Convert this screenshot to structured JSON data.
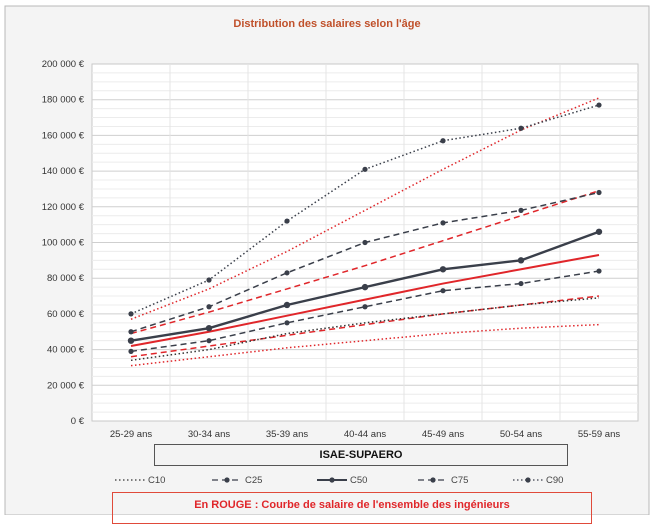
{
  "chart_data": {
    "type": "line",
    "title": "Distribution des salaires selon l'âge",
    "xlabel": "ISAE-SUPAERO",
    "ylabel": "",
    "categories": [
      "25-29 ans",
      "30-34 ans",
      "35-39 ans",
      "40-44 ans",
      "45-49 ans",
      "50-54 ans",
      "55-59 ans"
    ],
    "ylim": [
      0,
      200000
    ],
    "yticks": [
      "0 €",
      "20 000 €",
      "40 000 €",
      "60 000 €",
      "80 000 €",
      "100 000 €",
      "120 000 €",
      "140 000 €",
      "160 000 €",
      "180 000 €",
      "200 000 €"
    ],
    "grid": true,
    "legend_position": "bottom",
    "series": [
      {
        "name": "C10",
        "style": "dotted",
        "markers": false,
        "color": "#333333",
        "values": [
          34000,
          40000,
          49000,
          55000,
          60000,
          65000,
          69000
        ]
      },
      {
        "name": "C25",
        "style": "dashed",
        "markers": true,
        "color": "#3a3f4a",
        "values": [
          39000,
          45000,
          55000,
          64000,
          73000,
          77000,
          84000
        ]
      },
      {
        "name": "C50",
        "style": "solid",
        "markers": true,
        "color": "#3a3f4a",
        "values": [
          45000,
          52000,
          65000,
          75000,
          85000,
          90000,
          106000
        ]
      },
      {
        "name": "C75",
        "style": "dashed",
        "markers": true,
        "color": "#3a3f4a",
        "values": [
          50000,
          64000,
          83000,
          100000,
          111000,
          118000,
          128000
        ]
      },
      {
        "name": "C90",
        "style": "dotted",
        "markers": true,
        "color": "#3a3f4a",
        "values": [
          60000,
          79000,
          112000,
          141000,
          157000,
          164000,
          177000
        ]
      }
    ],
    "reference_series": [
      {
        "style": "dotted",
        "color": "#e0262a",
        "values": [
          31000,
          36000,
          41000,
          45000,
          49000,
          52000,
          54000
        ]
      },
      {
        "style": "dashed",
        "color": "#e0262a",
        "values": [
          36000,
          42000,
          48000,
          54000,
          60000,
          65000,
          70000
        ]
      },
      {
        "style": "solid",
        "color": "#e0262a",
        "values": [
          42000,
          50000,
          59000,
          68000,
          77000,
          85000,
          93000
        ]
      },
      {
        "style": "dashed",
        "color": "#e0262a",
        "values": [
          49000,
          61000,
          74000,
          87000,
          101000,
          115000,
          129000
        ]
      },
      {
        "style": "dotted",
        "color": "#e0262a",
        "values": [
          57000,
          74000,
          95000,
          118000,
          141000,
          163000,
          181000
        ]
      }
    ],
    "note": "En ROUGE : Courbe de salaire de l'ensemble des ingénieurs"
  }
}
